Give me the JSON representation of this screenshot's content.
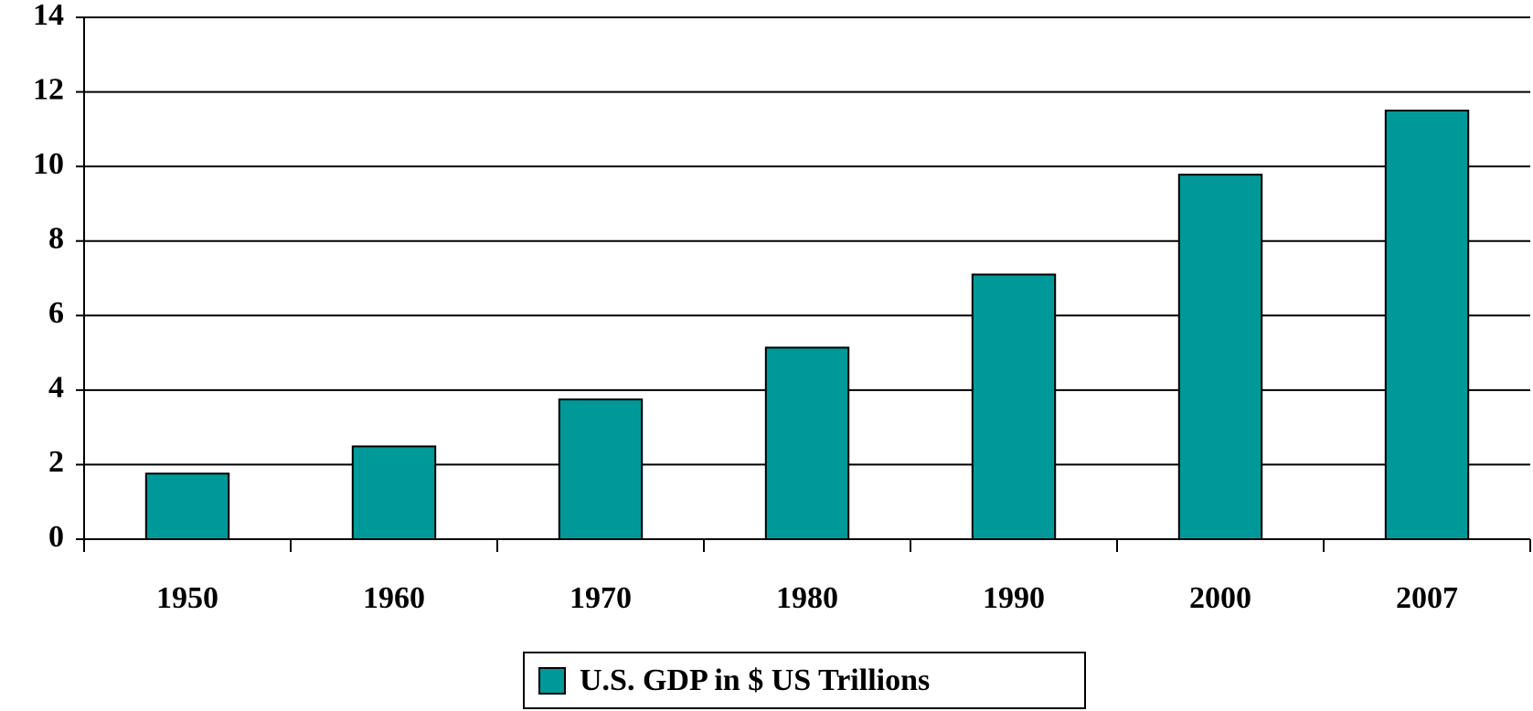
{
  "chart_data": {
    "type": "bar",
    "categories": [
      "1950",
      "1960",
      "1970",
      "1980",
      "1990",
      "2000",
      "2007"
    ],
    "series": [
      {
        "name": "U.S. GDP in $ US Trillions",
        "color": "#009999",
        "values": [
          1.76,
          2.49,
          3.75,
          5.14,
          7.1,
          9.78,
          11.5
        ]
      }
    ],
    "ylim": [
      0,
      14
    ],
    "yticks": [
      0,
      2,
      4,
      6,
      8,
      10,
      12,
      14
    ],
    "grid": true,
    "legend": "bottom"
  }
}
